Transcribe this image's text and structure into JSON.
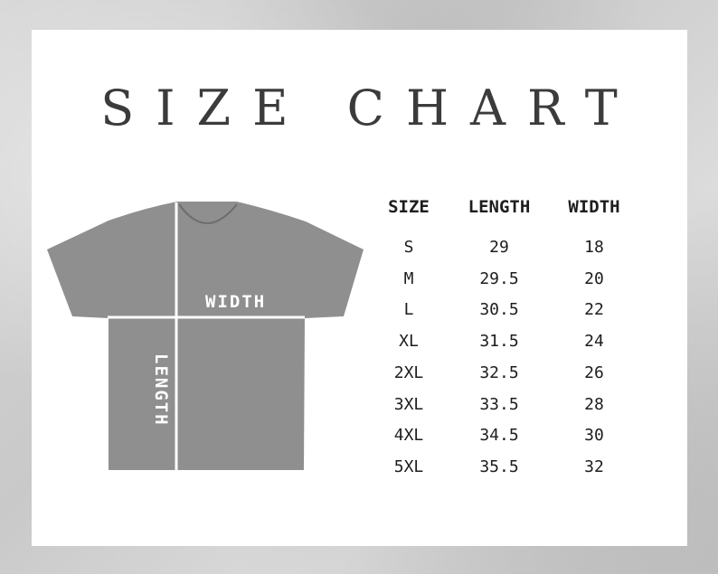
{
  "title": "SIZE CHART",
  "diagram": {
    "width_label": "WIDTH",
    "length_label": "LENGTH",
    "shirt_color": "#8f8f8f"
  },
  "table": {
    "headers": [
      "SIZE",
      "LENGTH",
      "WIDTH"
    ],
    "rows": [
      [
        "S",
        "29",
        "18"
      ],
      [
        "M",
        "29.5",
        "20"
      ],
      [
        "L",
        "30.5",
        "22"
      ],
      [
        "XL",
        "31.5",
        "24"
      ],
      [
        "2XL",
        "32.5",
        "26"
      ],
      [
        "3XL",
        "33.5",
        "28"
      ],
      [
        "4XL",
        "34.5",
        "30"
      ],
      [
        "5XL",
        "35.5",
        "32"
      ]
    ]
  }
}
